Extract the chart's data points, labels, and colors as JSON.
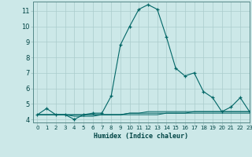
{
  "xlabel": "Humidex (Indice chaleur)",
  "background_color": "#cce8e8",
  "grid_color": "#aacccc",
  "line_color": "#006666",
  "xlim": [
    -0.5,
    23
  ],
  "ylim": [
    3.8,
    11.6
  ],
  "yticks": [
    4,
    5,
    6,
    7,
    8,
    9,
    10,
    11
  ],
  "xticks": [
    0,
    1,
    2,
    3,
    4,
    5,
    6,
    7,
    8,
    9,
    10,
    11,
    12,
    13,
    14,
    15,
    16,
    17,
    18,
    19,
    20,
    21,
    22,
    23
  ],
  "series1_x": [
    0,
    1,
    2,
    3,
    4,
    5,
    6,
    7,
    8,
    9,
    10,
    11,
    12,
    13,
    14,
    15,
    16,
    17,
    18,
    19,
    20,
    21,
    22,
    23
  ],
  "series1_y": [
    4.3,
    4.7,
    4.3,
    4.3,
    4.0,
    4.3,
    4.4,
    4.4,
    5.5,
    8.8,
    10.0,
    11.1,
    11.4,
    11.1,
    9.3,
    7.3,
    6.8,
    7.0,
    5.8,
    5.4,
    4.5,
    4.8,
    5.4,
    4.5
  ],
  "series2_x": [
    0,
    1,
    2,
    3,
    4,
    5,
    6,
    7,
    8,
    9,
    10,
    11,
    12,
    13,
    14,
    15,
    16,
    17,
    18,
    19,
    20,
    21,
    22,
    23
  ],
  "series2_y": [
    4.3,
    4.3,
    4.3,
    4.3,
    4.3,
    4.3,
    4.3,
    4.3,
    4.3,
    4.3,
    4.4,
    4.4,
    4.5,
    4.5,
    4.5,
    4.5,
    4.5,
    4.5,
    4.5,
    4.5,
    4.5,
    4.5,
    4.5,
    4.5
  ],
  "series3_x": [
    0,
    1,
    2,
    3,
    4,
    5,
    6,
    7,
    8,
    9,
    10,
    11,
    12,
    13,
    14,
    15,
    16,
    17,
    18,
    19,
    20,
    21,
    22,
    23
  ],
  "series3_y": [
    4.3,
    4.3,
    4.3,
    4.3,
    4.3,
    4.3,
    4.3,
    4.3,
    4.3,
    4.3,
    4.4,
    4.4,
    4.4,
    4.4,
    4.4,
    4.4,
    4.4,
    4.5,
    4.5,
    4.5,
    4.5,
    4.5,
    4.5,
    4.5
  ],
  "series4_x": [
    0,
    1,
    2,
    3,
    4,
    5,
    6,
    7,
    8,
    9,
    10,
    11,
    12,
    13,
    14,
    15,
    16,
    17,
    18,
    19,
    20,
    21,
    22,
    23
  ],
  "series4_y": [
    4.3,
    4.3,
    4.3,
    4.3,
    4.2,
    4.2,
    4.2,
    4.3,
    4.3,
    4.3,
    4.3,
    4.3,
    4.3,
    4.3,
    4.4,
    4.4,
    4.4,
    4.4,
    4.4,
    4.4,
    4.4,
    4.4,
    4.4,
    4.4
  ]
}
